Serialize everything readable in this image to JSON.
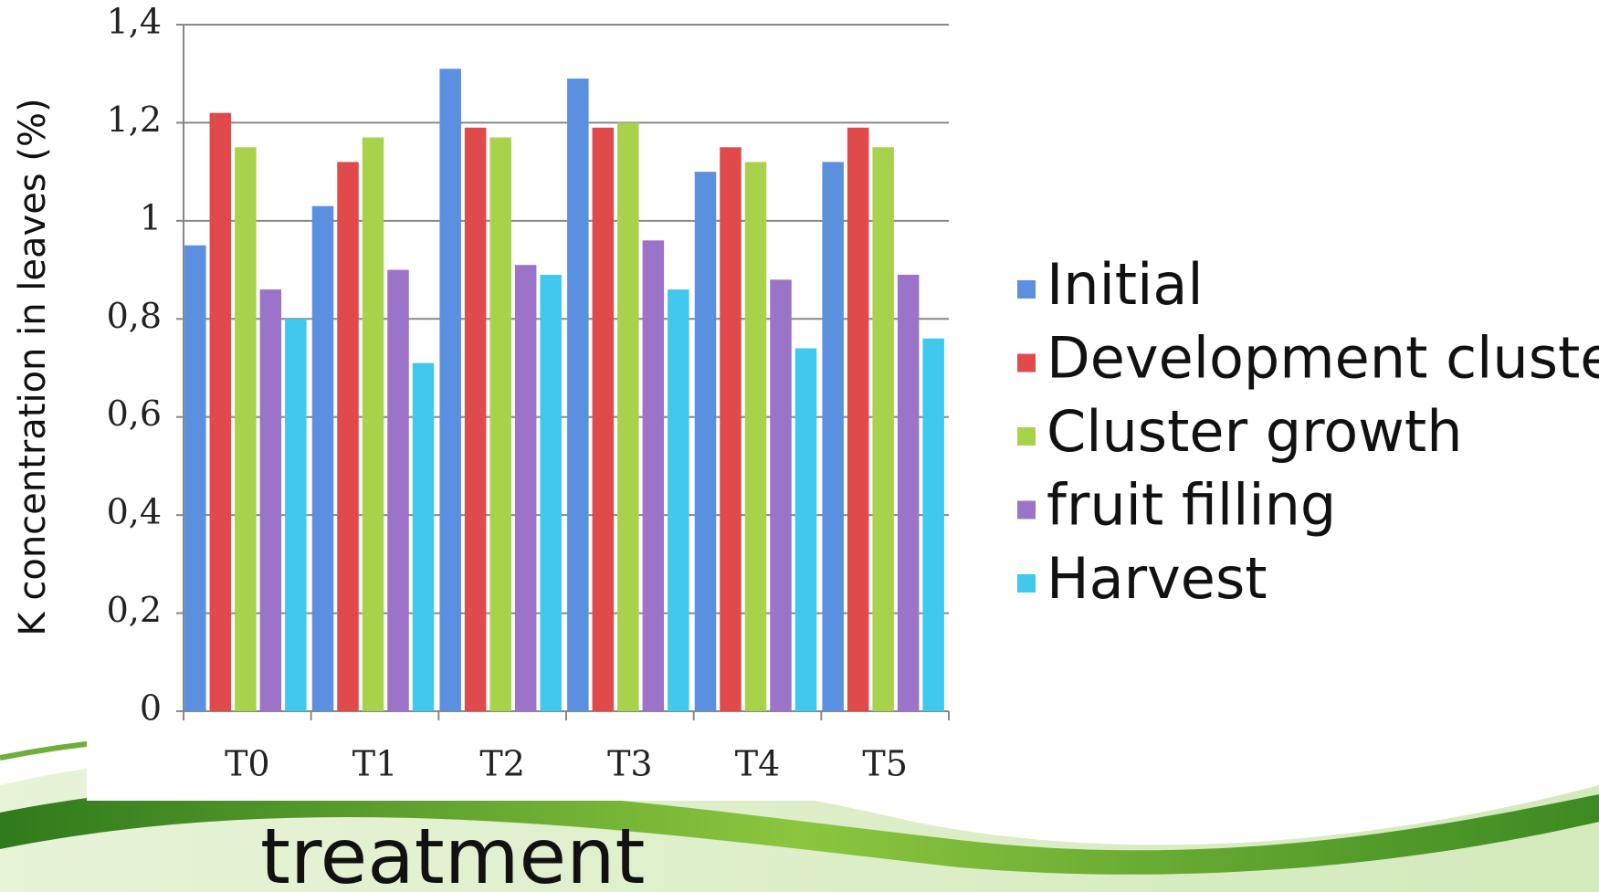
{
  "chart_data": {
    "type": "bar",
    "ylabel": "K concentration in leaves (%)",
    "xlabel": "treatment",
    "categories": [
      "T0",
      "T1",
      "T2",
      "T3",
      "T4",
      "T5"
    ],
    "series": [
      {
        "name": "Initial",
        "color": "#5b8fe0",
        "values": [
          0.95,
          1.03,
          1.31,
          1.29,
          1.1,
          1.12
        ]
      },
      {
        "name": "Development cluster",
        "color": "#e04a4a",
        "values": [
          1.22,
          1.12,
          1.19,
          1.19,
          1.15,
          1.19
        ]
      },
      {
        "name": "Cluster growth",
        "color": "#a8d24c",
        "values": [
          1.15,
          1.17,
          1.17,
          1.2,
          1.12,
          1.15
        ]
      },
      {
        "name": "fruit filling",
        "color": "#9b74c9",
        "values": [
          0.86,
          0.9,
          0.91,
          0.96,
          0.88,
          0.89
        ]
      },
      {
        "name": "Harvest",
        "color": "#40c8ee",
        "values": [
          0.8,
          0.71,
          0.89,
          0.86,
          0.74,
          0.76
        ]
      }
    ],
    "ylim": [
      0,
      1.4
    ],
    "yticks": [
      0,
      {
        "value": 0.2,
        "label": "0,2"
      },
      {
        "value": 0.4,
        "label": "0,4"
      },
      {
        "value": 0.6,
        "label": "0,6"
      },
      {
        "value": 0.8,
        "label": "0,8"
      },
      1,
      {
        "value": 1.2,
        "label": "1,2"
      },
      {
        "value": 1.4,
        "label": "1,4"
      }
    ],
    "grid": true,
    "legend": "right"
  }
}
